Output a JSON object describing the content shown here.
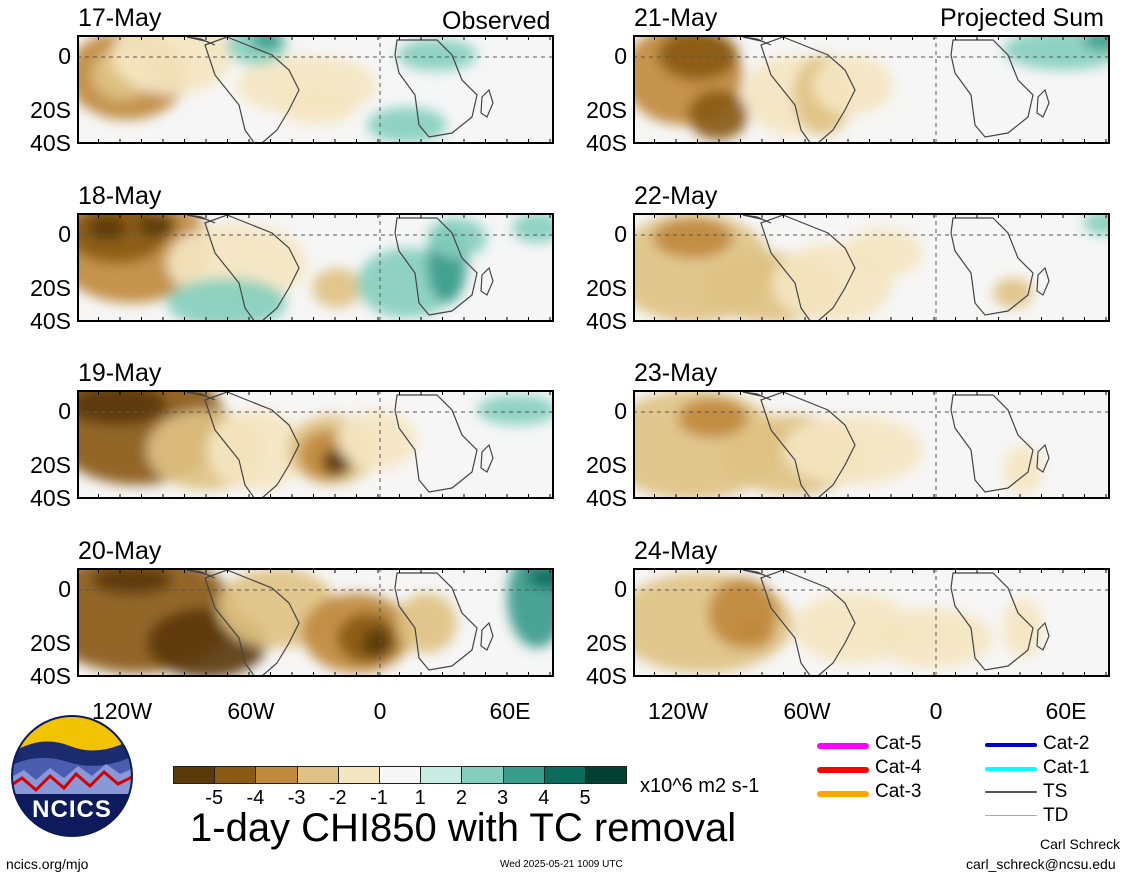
{
  "headers": {
    "left": "Observed",
    "right": "Projected Sum"
  },
  "panels": [
    {
      "date": "17-May"
    },
    {
      "date": "18-May"
    },
    {
      "date": "19-May"
    },
    {
      "date": "20-May"
    },
    {
      "date": "21-May"
    },
    {
      "date": "22-May"
    },
    {
      "date": "23-May"
    },
    {
      "date": "24-May"
    }
  ],
  "lat_labels": [
    "0",
    "20S",
    "40S"
  ],
  "lon_labels": [
    "120W",
    "60W",
    "0",
    "60E"
  ],
  "colorbar": {
    "colors": [
      "#5b3a0a",
      "#8a5a14",
      "#c08a3e",
      "#dfc283",
      "#f5e6c2",
      "#f7f7f7",
      "#c8ebe2",
      "#86cfbe",
      "#3a9c8c",
      "#0b6b5d",
      "#053f33"
    ],
    "ticks": [
      "-5",
      "-4",
      "-3",
      "-2",
      "-1",
      "1",
      "2",
      "3",
      "4",
      "5"
    ],
    "unit": "x10^6 m2 s-1"
  },
  "tc_legend": [
    {
      "label": "Cat-5",
      "color": "#ff00ff"
    },
    {
      "label": "Cat-4",
      "color": "#ff0000"
    },
    {
      "label": "Cat-3",
      "color": "#ffa500"
    },
    {
      "label": "Cat-2",
      "color": "#0000cc"
    },
    {
      "label": "Cat-1",
      "color": "#00ffff"
    },
    {
      "label": "TS",
      "color": "#555555"
    },
    {
      "label": "TD",
      "color": "#aaaaaa"
    }
  ],
  "title": "1-day CHI850 with TC removal",
  "logo_text": "NCICS",
  "footer": {
    "left": "ncics.org/mjo",
    "center": "Wed 2025-05-21 1009 UTC",
    "author": "Carl Schreck",
    "email": "carl_schreck@ncsu.edu"
  }
}
